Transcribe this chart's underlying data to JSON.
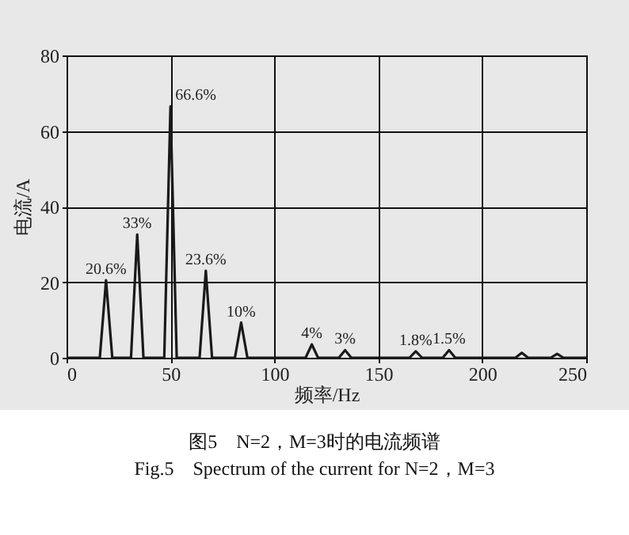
{
  "chart_data": {
    "type": "line",
    "xlabel": "频率/Hz",
    "ylabel": "电流/A",
    "x": [
      0,
      16,
      19,
      22,
      31,
      34,
      37,
      47,
      50,
      53,
      64,
      67,
      70,
      81,
      84,
      87,
      115,
      118,
      121,
      131,
      134,
      137,
      165,
      168,
      171,
      181,
      184,
      187,
      216,
      219,
      222,
      233,
      236,
      239,
      250
    ],
    "series": [
      {
        "color": "#1a1a1a",
        "values": [
          0,
          0,
          20.5,
          0,
          0,
          32.6,
          0,
          0,
          66.5,
          0,
          0,
          23,
          0,
          0,
          9.3,
          0,
          0,
          3.5,
          0,
          0,
          2,
          0,
          0,
          1.7,
          0,
          0,
          2,
          0,
          0,
          1.3,
          0,
          0,
          1,
          0,
          0
        ]
      }
    ],
    "xlim": [
      0,
      250
    ],
    "xticks": [
      0,
      50,
      100,
      150,
      200,
      250
    ],
    "ylim": [
      0,
      80
    ],
    "yticks": [
      0,
      20,
      40,
      60,
      80
    ],
    "grid": true,
    "legend": false,
    "marker": "none",
    "line_style": "solid",
    "annotations": [
      {
        "text": "20.6%",
        "x": 19,
        "y": 20.5
      },
      {
        "text": "33%",
        "x": 34,
        "y": 32.6
      },
      {
        "text": "66.6%",
        "x": 50,
        "y": 66.5
      },
      {
        "text": "23.6%",
        "x": 67,
        "y": 23
      },
      {
        "text": "10%",
        "x": 84,
        "y": 9.3
      },
      {
        "text": "4%",
        "x": 118,
        "y": 3.5
      },
      {
        "text": "3%",
        "x": 134,
        "y": 2
      },
      {
        "text": "1.8%",
        "x": 168,
        "y": 1.7
      },
      {
        "text": "1.5%",
        "x": 184,
        "y": 2
      },
      "图5　N=2，M=3时的电流频谱",
      "Fig.5　Spectrum of the current for N=2，M=3"
    ]
  }
}
